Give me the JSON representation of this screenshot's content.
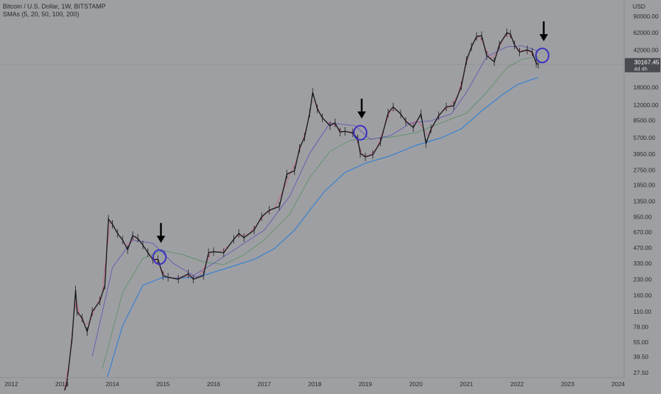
{
  "chart_data": {
    "type": "line",
    "title": "Bitcoin / U.S. Dollar, 1W, BITSTAMP",
    "indicator_label": "SMAs (5, 20, 50, 100, 200)",
    "currency": "USD",
    "y_scale": "log",
    "ylim": [
      25,
      100000
    ],
    "xlim": [
      2012.0,
      2024.3
    ],
    "x_ticks": [
      "2012",
      "2013",
      "2014",
      "2015",
      "2016",
      "2017",
      "2018",
      "2019",
      "2020",
      "2021",
      "2022",
      "2023",
      "2024"
    ],
    "y_ticks": [
      "90000.00",
      "62000.00",
      "42000.00",
      "18000.00",
      "12000.00",
      "8500.00",
      "5700.00",
      "3950.00",
      "2750.00",
      "1950.00",
      "1350.00",
      "950.00",
      "670.00",
      "470.00",
      "330.00",
      "230.00",
      "160.00",
      "110.00",
      "78.00",
      "55.00",
      "39.50",
      "27.50"
    ],
    "last_price": "30167.45",
    "countdown": "4d 4h",
    "price": [
      [
        2012.95,
        12
      ],
      [
        2013.1,
        22
      ],
      [
        2013.2,
        60
      ],
      [
        2013.27,
        180
      ],
      [
        2013.3,
        110
      ],
      [
        2013.4,
        95
      ],
      [
        2013.5,
        70
      ],
      [
        2013.6,
        110
      ],
      [
        2013.75,
        140
      ],
      [
        2013.85,
        200
      ],
      [
        2013.92,
        900
      ],
      [
        2014.0,
        800
      ],
      [
        2014.1,
        650
      ],
      [
        2014.2,
        560
      ],
      [
        2014.3,
        450
      ],
      [
        2014.4,
        620
      ],
      [
        2014.5,
        580
      ],
      [
        2014.6,
        500
      ],
      [
        2014.7,
        420
      ],
      [
        2014.8,
        360
      ],
      [
        2014.9,
        360
      ],
      [
        2015.0,
        250
      ],
      [
        2015.1,
        240
      ],
      [
        2015.3,
        230
      ],
      [
        2015.5,
        260
      ],
      [
        2015.6,
        230
      ],
      [
        2015.8,
        250
      ],
      [
        2015.9,
        420
      ],
      [
        2016.0,
        430
      ],
      [
        2016.2,
        420
      ],
      [
        2016.4,
        570
      ],
      [
        2016.5,
        650
      ],
      [
        2016.6,
        590
      ],
      [
        2016.8,
        700
      ],
      [
        2016.95,
        950
      ],
      [
        2017.1,
        1100
      ],
      [
        2017.3,
        1200
      ],
      [
        2017.45,
        2500
      ],
      [
        2017.6,
        2700
      ],
      [
        2017.7,
        4500
      ],
      [
        2017.8,
        5800
      ],
      [
        2017.9,
        10000
      ],
      [
        2017.96,
        16000
      ],
      [
        2018.05,
        11000
      ],
      [
        2018.15,
        9000
      ],
      [
        2018.3,
        7500
      ],
      [
        2018.4,
        8000
      ],
      [
        2018.5,
        6500
      ],
      [
        2018.6,
        6600
      ],
      [
        2018.75,
        6400
      ],
      [
        2018.85,
        5600
      ],
      [
        2018.9,
        4000
      ],
      [
        2019.0,
        3700
      ],
      [
        2019.15,
        3900
      ],
      [
        2019.3,
        5200
      ],
      [
        2019.45,
        10000
      ],
      [
        2019.55,
        11500
      ],
      [
        2019.7,
        9800
      ],
      [
        2019.8,
        8300
      ],
      [
        2019.95,
        7200
      ],
      [
        2020.1,
        9800
      ],
      [
        2020.2,
        5000
      ],
      [
        2020.3,
        7000
      ],
      [
        2020.45,
        9400
      ],
      [
        2020.6,
        11500
      ],
      [
        2020.75,
        11800
      ],
      [
        2020.9,
        18500
      ],
      [
        2021.0,
        33000
      ],
      [
        2021.1,
        45000
      ],
      [
        2021.2,
        57000
      ],
      [
        2021.3,
        58000
      ],
      [
        2021.4,
        37000
      ],
      [
        2021.55,
        32000
      ],
      [
        2021.65,
        47000
      ],
      [
        2021.8,
        62000
      ],
      [
        2021.87,
        60000
      ],
      [
        2021.95,
        47000
      ],
      [
        2022.05,
        40000
      ],
      [
        2022.2,
        42000
      ],
      [
        2022.3,
        40000
      ],
      [
        2022.38,
        31000
      ],
      [
        2022.42,
        30167
      ]
    ],
    "sma_200w": [
      [
        2013.9,
        25
      ],
      [
        2014.2,
        80
      ],
      [
        2014.6,
        200
      ],
      [
        2015.0,
        240
      ],
      [
        2015.3,
        235
      ],
      [
        2015.6,
        240
      ],
      [
        2015.9,
        260
      ],
      [
        2016.3,
        300
      ],
      [
        2016.8,
        360
      ],
      [
        2017.2,
        460
      ],
      [
        2017.6,
        700
      ],
      [
        2017.9,
        1100
      ],
      [
        2018.2,
        1700
      ],
      [
        2018.6,
        2600
      ],
      [
        2019.0,
        3200
      ],
      [
        2019.5,
        3800
      ],
      [
        2020.0,
        4800
      ],
      [
        2020.5,
        5700
      ],
      [
        2020.9,
        7000
      ],
      [
        2021.3,
        10500
      ],
      [
        2021.7,
        15000
      ],
      [
        2022.0,
        19000
      ],
      [
        2022.3,
        21500
      ],
      [
        2022.42,
        22500
      ]
    ],
    "sma_100w": [
      [
        2013.8,
        30
      ],
      [
        2014.2,
        170
      ],
      [
        2014.6,
        370
      ],
      [
        2015.0,
        440
      ],
      [
        2015.4,
        400
      ],
      [
        2015.8,
        340
      ],
      [
        2016.2,
        320
      ],
      [
        2016.6,
        400
      ],
      [
        2017.0,
        560
      ],
      [
        2017.5,
        1000
      ],
      [
        2017.9,
        2300
      ],
      [
        2018.3,
        4200
      ],
      [
        2018.7,
        5400
      ],
      [
        2019.0,
        5500
      ],
      [
        2019.5,
        5800
      ],
      [
        2020.0,
        6400
      ],
      [
        2020.5,
        8000
      ],
      [
        2021.0,
        10000
      ],
      [
        2021.4,
        16000
      ],
      [
        2021.8,
        28000
      ],
      [
        2022.1,
        34000
      ],
      [
        2022.42,
        36000
      ]
    ],
    "sma_50w": [
      [
        2013.6,
        40
      ],
      [
        2014.0,
        300
      ],
      [
        2014.4,
        560
      ],
      [
        2014.8,
        520
      ],
      [
        2015.2,
        330
      ],
      [
        2015.6,
        250
      ],
      [
        2016.0,
        330
      ],
      [
        2016.5,
        480
      ],
      [
        2017.0,
        700
      ],
      [
        2017.5,
        1500
      ],
      [
        2017.9,
        4000
      ],
      [
        2018.3,
        8000
      ],
      [
        2018.8,
        7500
      ],
      [
        2019.1,
        5500
      ],
      [
        2019.5,
        6000
      ],
      [
        2019.9,
        8000
      ],
      [
        2020.3,
        8400
      ],
      [
        2020.7,
        9800
      ],
      [
        2021.0,
        16000
      ],
      [
        2021.4,
        36000
      ],
      [
        2021.8,
        45000
      ],
      [
        2022.1,
        46000
      ],
      [
        2022.42,
        41000
      ]
    ]
  }
}
